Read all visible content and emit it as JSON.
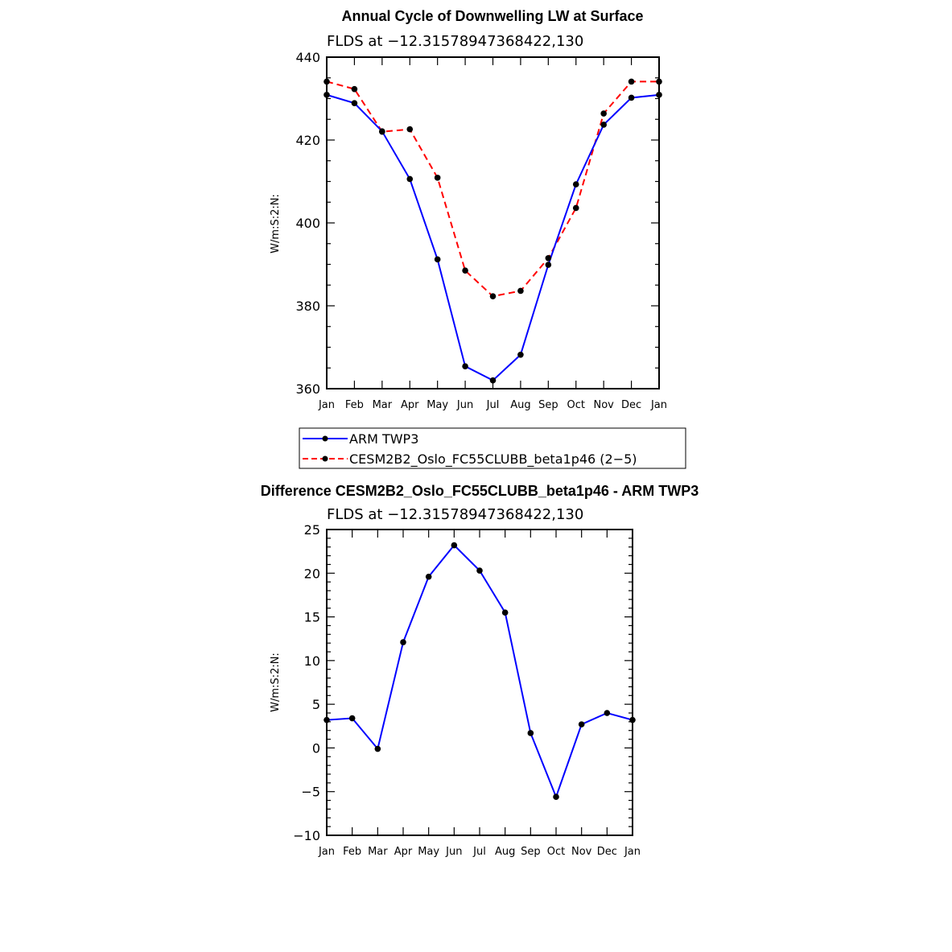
{
  "chart_data": [
    {
      "type": "line",
      "title": "Annual Cycle of Downwelling LW at Surface",
      "subtitle": "FLDS at −12.31578947368422,130",
      "xlabel": "",
      "ylabel": "W/m:S:2:N:",
      "categories": [
        "Jan",
        "Feb",
        "Mar",
        "Apr",
        "May",
        "Jun",
        "Jul",
        "Aug",
        "Sep",
        "Oct",
        "Nov",
        "Dec",
        "Jan"
      ],
      "ylim": [
        360,
        440
      ],
      "yticks": [
        "360",
        "380",
        "400",
        "420",
        "440"
      ],
      "series": [
        {
          "name": "ARM TWP3",
          "color": "#0000ff",
          "dash": false,
          "values": [
            430.9,
            428.9,
            422.1,
            410.6,
            391.2,
            365.4,
            362.0,
            368.2,
            389.9,
            409.3,
            423.7,
            430.2,
            430.9
          ]
        },
        {
          "name": "CESM2B2_Oslo_FC55CLUBB_beta1p46 (2−5)",
          "color": "#ff0000",
          "dash": true,
          "values": [
            434.1,
            432.3,
            422.0,
            422.6,
            410.9,
            388.5,
            382.3,
            383.6,
            391.5,
            403.6,
            426.4,
            434.1,
            434.1
          ]
        }
      ],
      "legend": "below"
    },
    {
      "type": "line",
      "title": "Difference CESM2B2_Oslo_FC55CLUBB_beta1p46 - ARM TWP3",
      "subtitle": "FLDS at −12.31578947368422,130",
      "xlabel": "",
      "ylabel": "W/m:S:2:N:",
      "categories": [
        "Jan",
        "Feb",
        "Mar",
        "Apr",
        "May",
        "Jun",
        "Jul",
        "Aug",
        "Sep",
        "Oct",
        "Nov",
        "Dec",
        "Jan"
      ],
      "ylim": [
        -10,
        25
      ],
      "yticks": [
        "−10",
        "−5",
        "0",
        "5",
        "10",
        "15",
        "20",
        "25"
      ],
      "series": [
        {
          "name": "",
          "color": "#0000ff",
          "dash": false,
          "values": [
            3.2,
            3.4,
            -0.1,
            12.1,
            19.6,
            23.2,
            20.3,
            15.5,
            1.7,
            -5.6,
            2.7,
            4.0,
            3.2
          ]
        }
      ]
    }
  ]
}
